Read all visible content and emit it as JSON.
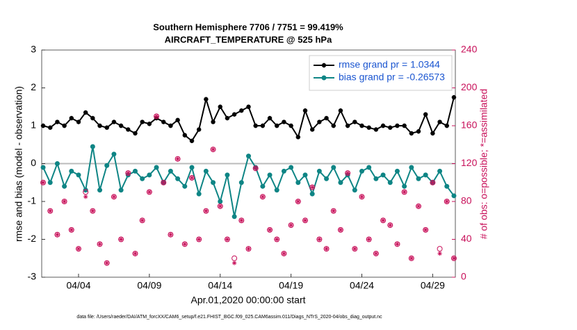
{
  "chart_data": {
    "type": "line",
    "title": "Southern Hemisphere 7706 / 7751 = 99.419%",
    "subtitle": "AIRCRAFT_TEMPERATURE @ 525 hPa",
    "xlabel": "Apr.01,2020 00:00:00 start",
    "ylabel": "rmse and bias (model - observation)",
    "y2label": "# of obs: o=possible; *=assimilated",
    "footnote": "data file: /Users/raeder/DAI/ATM_forcXX/CAM6_setup/f.e21.FHIST_BGC.f09_025.CAM6assim.011/Diags_NTrS_2020-04/obs_diag_output.nc",
    "legend": "upper right",
    "xlim": [
      1.4,
      30.6
    ],
    "xticks": [
      {
        "value": 4,
        "label": "04/04"
      },
      {
        "value": 9,
        "label": "04/09"
      },
      {
        "value": 14,
        "label": "04/14"
      },
      {
        "value": 19,
        "label": "04/19"
      },
      {
        "value": 24,
        "label": "04/24"
      },
      {
        "value": 29,
        "label": "04/29"
      }
    ],
    "ylim": [
      -3,
      3
    ],
    "yticks": [
      -3,
      -2,
      -1,
      0,
      1,
      2,
      3
    ],
    "y2lim": [
      0,
      240
    ],
    "y2ticks": [
      0,
      40,
      80,
      120,
      160,
      200,
      240
    ],
    "y2color": "#c8105a",
    "x": [
      1.5,
      2,
      2.5,
      3,
      3.5,
      4,
      4.5,
      5,
      5.5,
      6,
      6.5,
      7,
      7.5,
      8,
      8.5,
      9,
      9.5,
      10,
      10.5,
      11,
      11.5,
      12,
      12.5,
      13,
      13.5,
      14,
      14.5,
      15,
      15.5,
      16,
      16.5,
      17,
      17.5,
      18,
      18.5,
      19,
      19.5,
      20,
      20.5,
      21,
      21.5,
      22,
      22.5,
      23,
      23.5,
      24,
      24.5,
      25,
      25.5,
      26,
      26.5,
      27,
      27.5,
      28,
      28.5,
      29,
      29.5,
      30,
      30.5
    ],
    "series": [
      {
        "name": "rmse grand pr = 1.0344",
        "color": "#000000",
        "marker": "star",
        "values": [
          1.0,
          0.95,
          1.1,
          1.0,
          1.2,
          1.1,
          1.35,
          1.2,
          1.0,
          0.95,
          1.1,
          1.0,
          0.9,
          0.8,
          1.1,
          1.05,
          1.2,
          1.1,
          1.0,
          1.15,
          0.75,
          0.6,
          0.9,
          1.7,
          1.1,
          1.5,
          1.2,
          1.3,
          1.4,
          1.5,
          1.0,
          1.0,
          1.2,
          1.0,
          1.1,
          1.0,
          0.7,
          1.4,
          0.9,
          1.1,
          1.2,
          1.0,
          1.4,
          1.0,
          1.1,
          1.0,
          0.95,
          0.9,
          1.0,
          0.95,
          1.0,
          1.0,
          0.8,
          0.85,
          1.3,
          0.8,
          1.1,
          1.0,
          1.75
        ]
      },
      {
        "name": "bias grand pr = -0.26573",
        "color": "#0e8585",
        "marker": "circle",
        "values": [
          -0.1,
          -0.5,
          0.0,
          -0.6,
          -0.2,
          -0.3,
          -0.7,
          0.45,
          -0.7,
          -0.05,
          0.25,
          -0.7,
          -0.3,
          -0.2,
          -0.4,
          -0.3,
          -0.1,
          -0.5,
          -0.2,
          -0.4,
          -0.6,
          -0.1,
          -0.8,
          -0.2,
          -0.5,
          -1.0,
          -0.3,
          -1.4,
          -0.5,
          0.2,
          -0.1,
          -0.6,
          -0.3,
          -0.7,
          -0.2,
          -0.1,
          -0.5,
          -0.3,
          -0.8,
          -0.2,
          -0.4,
          -0.1,
          -0.5,
          -0.3,
          -0.7,
          -0.2,
          -0.1,
          -0.4,
          -0.3,
          -0.5,
          -0.2,
          -0.6,
          -0.1,
          -0.4,
          -0.3,
          -0.5,
          -0.2,
          -0.6,
          -0.85
        ]
      },
      {
        "axis": "y2",
        "color": "#c8105a",
        "marker": "o",
        "values": [
          100,
          70,
          45,
          80,
          50,
          30,
          90,
          70,
          35,
          15,
          85,
          40,
          110,
          25,
          60,
          90,
          170,
          100,
          45,
          125,
          35,
          105,
          40,
          70,
          135,
          75,
          40,
          20,
          60,
          30,
          115,
          85,
          50,
          40,
          25,
          55,
          80,
          60,
          95,
          40,
          30,
          70,
          50,
          110,
          30,
          85,
          40,
          25,
          60,
          55,
          35,
          90,
          20,
          75,
          50,
          100,
          30,
          80,
          20
        ]
      },
      {
        "axis": "y2",
        "color": "#c8105a",
        "marker": "asterisk",
        "values": [
          100,
          70,
          45,
          80,
          50,
          30,
          85,
          70,
          35,
          15,
          85,
          40,
          110,
          25,
          60,
          90,
          170,
          100,
          45,
          125,
          35,
          105,
          40,
          70,
          135,
          75,
          40,
          15,
          60,
          30,
          115,
          85,
          50,
          40,
          25,
          55,
          80,
          60,
          95,
          40,
          30,
          70,
          50,
          110,
          30,
          85,
          40,
          25,
          60,
          55,
          35,
          90,
          20,
          75,
          50,
          100,
          25,
          80,
          20
        ]
      }
    ]
  }
}
